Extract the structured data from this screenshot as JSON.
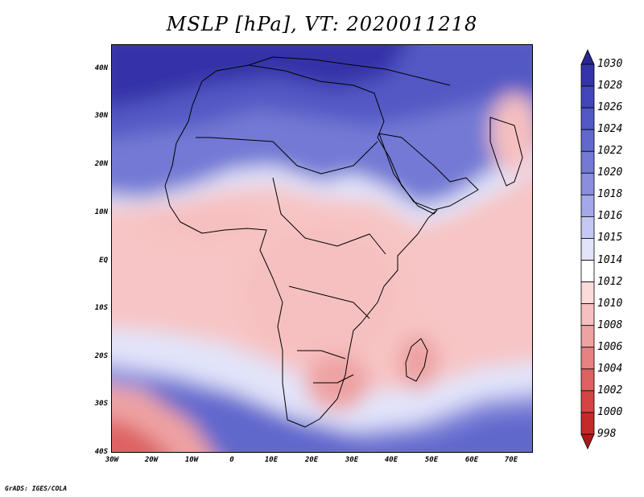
{
  "title": "MSLP [hPa], VT: 2020011218",
  "credit": "GrADS: IGES/COLA",
  "map": {
    "variable": "MSLP",
    "units": "hPa",
    "valid_time": "2020011218",
    "lat_range": [
      -40,
      45
    ],
    "lon_range": [
      -30,
      75
    ]
  },
  "axes": {
    "lat_labels": [
      "40N",
      "30N",
      "20N",
      "10N",
      "EQ",
      "10S",
      "20S",
      "30S",
      "40S"
    ],
    "lon_labels": [
      "30W",
      "20W",
      "10W",
      "0",
      "10E",
      "20E",
      "30E",
      "40E",
      "50E",
      "60E",
      "70E"
    ]
  },
  "colorbar": {
    "labels": [
      "1030",
      "1028",
      "1026",
      "1024",
      "1022",
      "1020",
      "1018",
      "1016",
      "1015",
      "1014",
      "1012",
      "1010",
      "1008",
      "1006",
      "1004",
      "1002",
      "1000",
      "998"
    ],
    "colors": [
      "#2a2590",
      "#3433a8",
      "#4346b8",
      "#5258c4",
      "#6168cc",
      "#7379d4",
      "#8a8edd",
      "#a4a8e8",
      "#c4c8f2",
      "#e2e4fa",
      "#ffffff",
      "#fbdada",
      "#f6c0c0",
      "#eea2a2",
      "#e68282",
      "#dd6262",
      "#d44444",
      "#c42a2a",
      "#b01818"
    ]
  }
}
